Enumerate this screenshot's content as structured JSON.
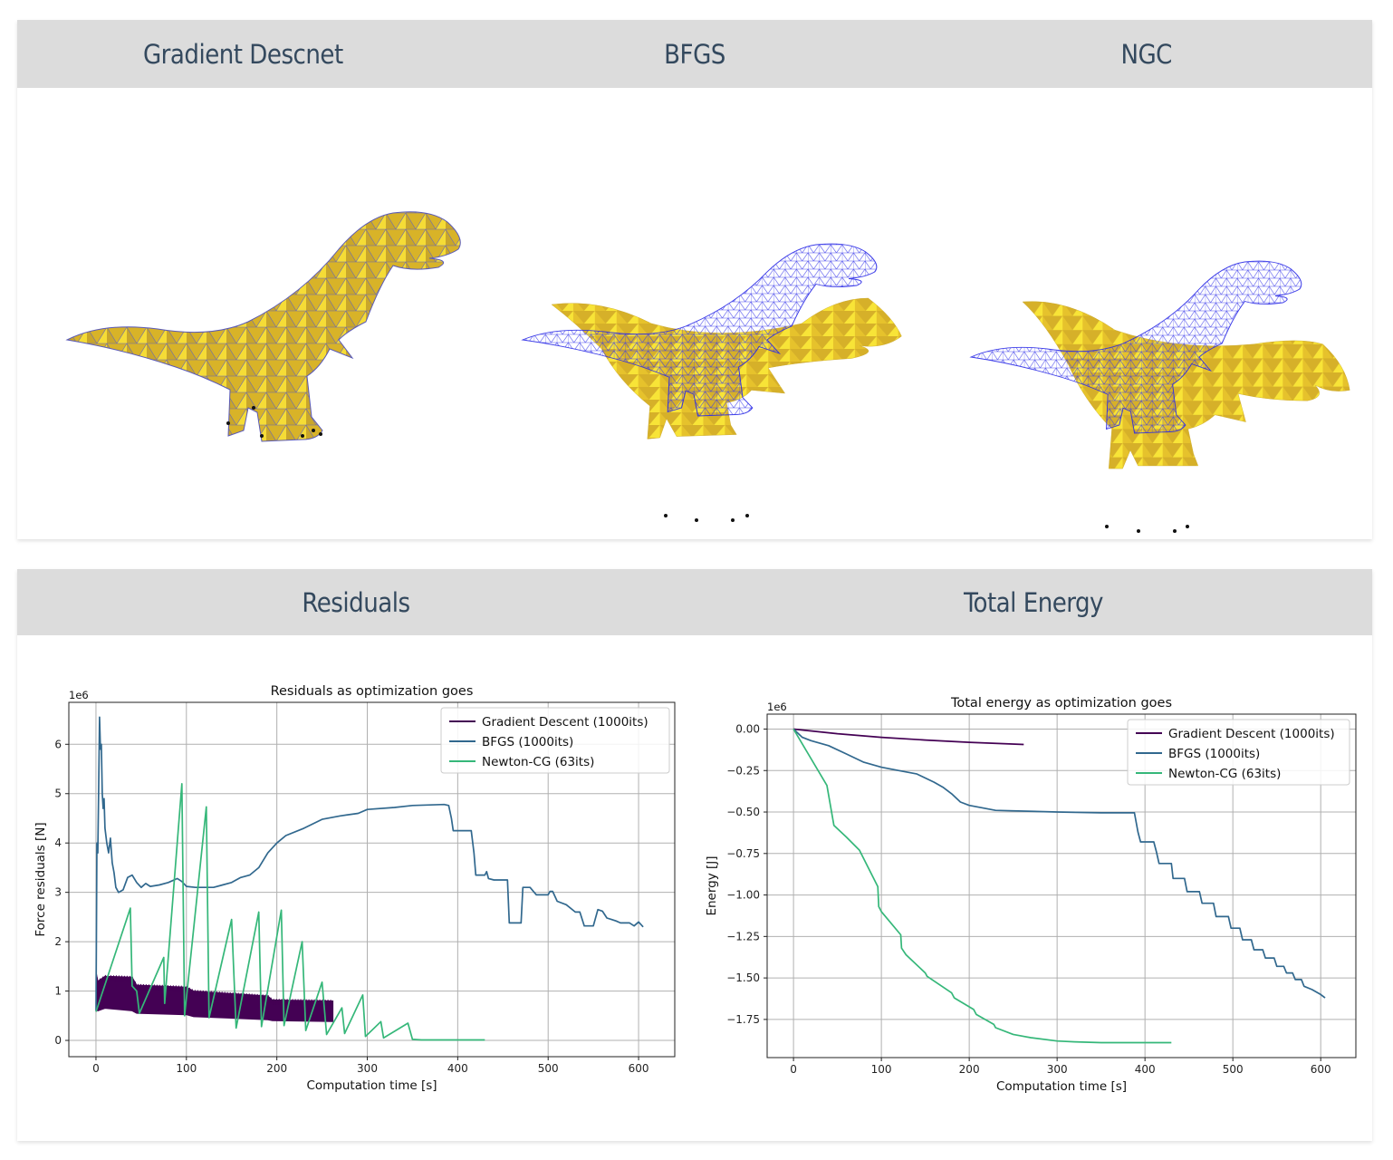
{
  "top_panel": {
    "columns": [
      {
        "title": "Gradient Descnet",
        "image": "dinosaur-mesh-gradient-descent"
      },
      {
        "title": "BFGS",
        "image": "dinosaur-mesh-bfgs"
      },
      {
        "title": "NGC",
        "image": "dinosaur-mesh-ngc"
      }
    ],
    "colors": {
      "mesh_fill": "#e8c42a",
      "mesh_highlight": "#fff23a",
      "mesh_shadow": "#b8982a",
      "wireframe": "#2a2ae6"
    }
  },
  "bottom_panel": {
    "columns": [
      {
        "title": "Residuals"
      },
      {
        "title": "Total Energy"
      }
    ]
  },
  "chart_data": [
    {
      "type": "line",
      "title": "Residuals as optimization goes",
      "xlabel": "Computation time [s]",
      "ylabel": "Force residuals [N]",
      "offset_label": "1e6",
      "xlim": [
        -30,
        640
      ],
      "ylim": [
        -0.33,
        6.85
      ],
      "xticks": [
        0,
        100,
        200,
        300,
        400,
        500,
        600
      ],
      "yticks": [
        0,
        1,
        2,
        3,
        4,
        5,
        6
      ],
      "grid": true,
      "legend": "top-right",
      "series": [
        {
          "name": "Gradient Descent (1000its)",
          "color": "#440154",
          "style": "band",
          "x": [
            0,
            2,
            10,
            40,
            45,
            100,
            108,
            190,
            195,
            262
          ],
          "low": [
            0.62,
            0.6,
            0.65,
            0.6,
            0.55,
            0.52,
            0.48,
            0.42,
            0.4,
            0.38
          ],
          "high": [
            1.4,
            1.2,
            1.3,
            1.28,
            1.12,
            1.08,
            1.0,
            0.9,
            0.82,
            0.8
          ]
        },
        {
          "name": "BFGS (1000its)",
          "color": "#31688e",
          "x": [
            0,
            1,
            2,
            3,
            4,
            5,
            6,
            7,
            8,
            9,
            10,
            12,
            14,
            16,
            18,
            20,
            22,
            25,
            30,
            35,
            40,
            45,
            50,
            55,
            60,
            70,
            80,
            90,
            95,
            100,
            110,
            120,
            130,
            140,
            150,
            160,
            170,
            180,
            190,
            200,
            210,
            230,
            250,
            270,
            290,
            300,
            330,
            350,
            385,
            390,
            393,
            395,
            415,
            418,
            420,
            430,
            432,
            434,
            440,
            455,
            457,
            460,
            470,
            472,
            475,
            480,
            487,
            490,
            500,
            502,
            505,
            510,
            520,
            530,
            535,
            540,
            550,
            555,
            560,
            565,
            570,
            575,
            580,
            590,
            595,
            600,
            605
          ],
          "y": [
            0.6,
            4.0,
            3.8,
            5.2,
            6.55,
            5.9,
            6.0,
            5.0,
            4.7,
            4.9,
            4.3,
            4.0,
            3.8,
            4.1,
            3.6,
            3.4,
            3.1,
            3.0,
            3.05,
            3.3,
            3.35,
            3.2,
            3.1,
            3.18,
            3.12,
            3.15,
            3.2,
            3.28,
            3.22,
            3.12,
            3.1,
            3.1,
            3.1,
            3.15,
            3.2,
            3.3,
            3.35,
            3.5,
            3.8,
            4.0,
            4.15,
            4.3,
            4.48,
            4.55,
            4.6,
            4.68,
            4.72,
            4.76,
            4.78,
            4.76,
            4.5,
            4.25,
            4.25,
            3.8,
            3.35,
            3.35,
            3.42,
            3.28,
            3.25,
            3.25,
            2.38,
            2.38,
            2.38,
            3.1,
            3.1,
            3.1,
            2.95,
            2.95,
            2.95,
            3.02,
            3.02,
            2.82,
            2.75,
            2.6,
            2.6,
            2.32,
            2.32,
            2.65,
            2.62,
            2.48,
            2.45,
            2.42,
            2.38,
            2.38,
            2.32,
            2.4,
            2.3
          ]
        },
        {
          "name": "Newton-CG (63its)",
          "color": "#35b779",
          "x": [
            0,
            38,
            40,
            45,
            48,
            75,
            76,
            95,
            98,
            122,
            125,
            150,
            155,
            180,
            183,
            205,
            208,
            228,
            232,
            250,
            255,
            272,
            275,
            295,
            298,
            315,
            318,
            345,
            350,
            360,
            430
          ],
          "y": [
            0.58,
            2.68,
            1.1,
            1.0,
            0.55,
            1.68,
            0.75,
            5.2,
            0.5,
            4.73,
            0.46,
            2.45,
            0.25,
            2.6,
            0.28,
            2.64,
            0.3,
            2.0,
            0.2,
            1.18,
            0.12,
            0.66,
            0.14,
            0.92,
            0.08,
            0.38,
            0.05,
            0.35,
            0.02,
            0.01,
            0.01
          ]
        }
      ]
    },
    {
      "type": "line",
      "title": "Total energy as optimization goes",
      "xlabel": "Computation time [s]",
      "ylabel": "Energy [J]",
      "offset_label": "1e6",
      "xlim": [
        -30,
        640
      ],
      "ylim": [
        -1.98,
        0.09
      ],
      "xticks": [
        0,
        100,
        200,
        300,
        400,
        500,
        600
      ],
      "yticks": [
        0.0,
        -0.25,
        -0.5,
        -0.75,
        -1.0,
        -1.25,
        -1.5,
        -1.75
      ],
      "ytick_labels": [
        "0.00",
        "−0.25",
        "−0.50",
        "−0.75",
        "−1.00",
        "−1.25",
        "−1.50",
        "−1.75"
      ],
      "grid": true,
      "legend": "top-right",
      "series": [
        {
          "name": "Gradient Descent (1000its)",
          "color": "#440154",
          "x": [
            0,
            50,
            100,
            150,
            200,
            262
          ],
          "y": [
            0.0,
            -0.028,
            -0.05,
            -0.066,
            -0.08,
            -0.093
          ]
        },
        {
          "name": "BFGS (1000its)",
          "color": "#31688e",
          "x": [
            0,
            10,
            20,
            40,
            60,
            80,
            100,
            120,
            140,
            160,
            170,
            180,
            190,
            200,
            230,
            300,
            350,
            388,
            392,
            395,
            410,
            413,
            416,
            430,
            432,
            445,
            448,
            462,
            465,
            478,
            481,
            495,
            498,
            508,
            511,
            521,
            524,
            534,
            537,
            547,
            550,
            558,
            561,
            568,
            571,
            578,
            581,
            590,
            600,
            605
          ],
          "y": [
            0.0,
            -0.05,
            -0.07,
            -0.1,
            -0.15,
            -0.2,
            -0.23,
            -0.25,
            -0.27,
            -0.32,
            -0.35,
            -0.39,
            -0.44,
            -0.46,
            -0.49,
            -0.5,
            -0.505,
            -0.505,
            -0.62,
            -0.68,
            -0.68,
            -0.74,
            -0.81,
            -0.81,
            -0.9,
            -0.9,
            -0.98,
            -0.98,
            -1.05,
            -1.05,
            -1.13,
            -1.13,
            -1.2,
            -1.2,
            -1.27,
            -1.27,
            -1.33,
            -1.33,
            -1.38,
            -1.38,
            -1.43,
            -1.43,
            -1.47,
            -1.47,
            -1.51,
            -1.51,
            -1.55,
            -1.57,
            -1.6,
            -1.62
          ]
        },
        {
          "name": "Newton-CG (63its)",
          "color": "#35b779",
          "x": [
            0,
            38,
            46,
            60,
            75,
            96,
            97,
            100,
            122,
            123,
            128,
            150,
            152,
            180,
            183,
            205,
            208,
            228,
            230,
            250,
            270,
            300,
            320,
            350,
            400,
            430
          ],
          "y": [
            0.0,
            -0.34,
            -0.58,
            -0.65,
            -0.73,
            -0.95,
            -1.07,
            -1.1,
            -1.24,
            -1.32,
            -1.36,
            -1.47,
            -1.49,
            -1.59,
            -1.62,
            -1.69,
            -1.72,
            -1.78,
            -1.8,
            -1.84,
            -1.86,
            -1.88,
            -1.885,
            -1.89,
            -1.89,
            -1.89
          ]
        }
      ]
    }
  ]
}
